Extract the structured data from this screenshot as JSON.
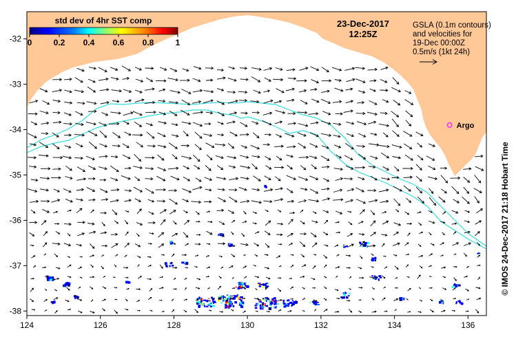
{
  "colorbar": {
    "title": "std dev of 4hr SST comp",
    "ticks": [
      "0",
      "0.2",
      "0.4",
      "0.6",
      "0.8",
      "1"
    ],
    "tick_values": [
      0,
      0.2,
      0.4,
      0.6,
      0.8,
      1
    ],
    "colors": [
      "#00007f",
      "#0000ff",
      "#007fff",
      "#00ffff",
      "#7fff7f",
      "#ffff00",
      "#ff7f00",
      "#ff0000",
      "#7f0000"
    ]
  },
  "timestamp": {
    "date": "23-Dec-2017",
    "time": "12:25Z"
  },
  "legend": {
    "lines": [
      "GSLA (0.1m contours)",
      "and velocities for",
      "19-Dec 00:00Z",
      "0.5m/s (1kt 24h)"
    ]
  },
  "site": {
    "label": "Argo",
    "color": "#ff33ff",
    "lon": 135.5,
    "lat": -33.9
  },
  "axes": {
    "lon_min": 124,
    "lon_max": 136.5,
    "lat_min": -38.1,
    "lat_max": -31.4,
    "x_ticks": [
      "124",
      "126",
      "128",
      "130",
      "132",
      "134",
      "136"
    ],
    "x_values": [
      124,
      126,
      128,
      130,
      132,
      134,
      136
    ],
    "y_ticks": [
      "-32",
      "-33",
      "-34",
      "-35",
      "-36",
      "-37",
      "-38"
    ],
    "y_values": [
      -32,
      -33,
      -34,
      -35,
      -36,
      -37,
      -38
    ]
  },
  "credit": "© IMOS 24-Dec-2017 21:18 Hobart Time",
  "colors": {
    "land": "#ffc896",
    "contour": "#33dddd",
    "arrow": "#000000"
  }
}
